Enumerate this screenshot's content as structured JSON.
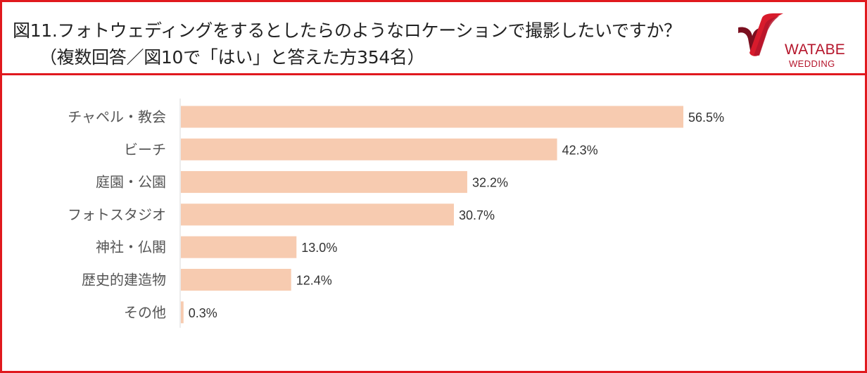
{
  "header": {
    "title": "図11.フォトウェディングをするとしたらのようなロケーションで撮影したいですか？",
    "subtitle": "（複数回答／図10で「はい」と答えた方354名）"
  },
  "logo": {
    "name": "WATABE",
    "sub": "WEDDING"
  },
  "colors": {
    "border": "#e0191e",
    "bar": "#f7cbb0",
    "logo": "#b5152b"
  },
  "chart_data": {
    "type": "bar",
    "orientation": "horizontal",
    "categories": [
      "チャペル・教会",
      "ビーチ",
      "庭園・公園",
      "フォトスタジオ",
      "神社・仏閣",
      "歴史的建造物",
      "その他"
    ],
    "values": [
      56.5,
      42.3,
      32.2,
      30.7,
      13.0,
      12.4,
      0.3
    ],
    "value_labels": [
      "56.5%",
      "42.3%",
      "32.2%",
      "30.7%",
      "13.0%",
      "12.4%",
      "0.3%"
    ],
    "title": "",
    "xlabel": "",
    "ylabel": "",
    "xlim": [
      0,
      58
    ],
    "grid": false,
    "legend": "none"
  }
}
